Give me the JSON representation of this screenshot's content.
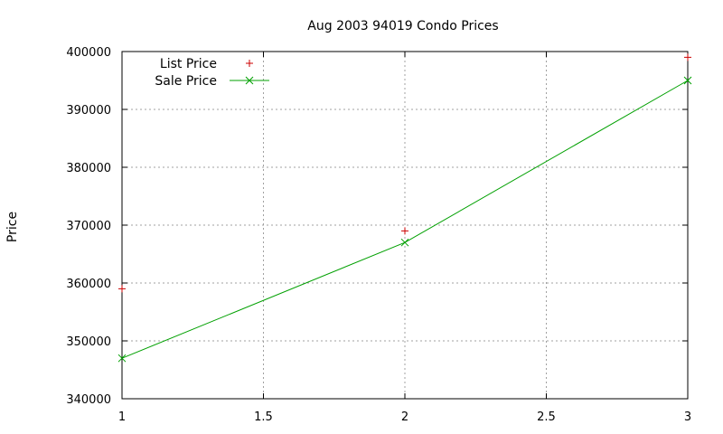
{
  "chart_data": {
    "type": "line",
    "title": "Aug 2003 94019 Condo Prices",
    "xlabel": "",
    "ylabel": "Price",
    "xlim": [
      1,
      3
    ],
    "ylim": [
      340000,
      400000
    ],
    "x_ticks": [
      1,
      1.5,
      2,
      2.5,
      3
    ],
    "x_tick_labels": [
      "1",
      "1.5",
      "2",
      "2.5",
      "3"
    ],
    "y_ticks": [
      340000,
      350000,
      360000,
      370000,
      380000,
      390000,
      400000
    ],
    "y_tick_labels": [
      "340000",
      "350000",
      "360000",
      "370000",
      "380000",
      "390000",
      "400000"
    ],
    "grid": true,
    "legend_position": "top-left",
    "series": [
      {
        "name": "List Price",
        "style": "points",
        "marker": "plus",
        "color": "#cc0000",
        "x": [
          1,
          2,
          3
        ],
        "y": [
          359000,
          369000,
          399000
        ]
      },
      {
        "name": "Sale Price",
        "style": "linespoints",
        "marker": "cross",
        "color": "#00a000",
        "x": [
          1,
          2,
          3
        ],
        "y": [
          347000,
          367000,
          395000
        ]
      }
    ]
  }
}
